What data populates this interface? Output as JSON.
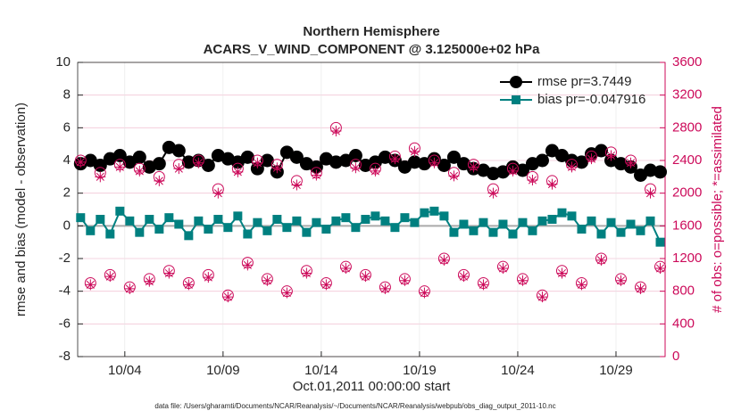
{
  "chart_data": {
    "type": "line",
    "title": "Northern Hemisphere",
    "subtitle": "ACARS_V_WIND_COMPONENT @ 3.125000e+02 hPa",
    "xlabel": "Oct.01,2011 00:00:00 start",
    "ylabel": "rmse and bias (model - observation)",
    "y2label": "# of obs: o=possible; *=assimilated",
    "footnote": "data file: /Users/gharamti/Documents/NCAR/Reanalysis/~/Documents/NCAR/Reanalysis/webpub/obs_diag_output_2011-10.nc",
    "xlim": [
      1.6,
      31.5
    ],
    "xticks": [
      {
        "value": 4,
        "label": "10/04"
      },
      {
        "value": 9,
        "label": "10/09"
      },
      {
        "value": 14,
        "label": "10/14"
      },
      {
        "value": 19,
        "label": "10/19"
      },
      {
        "value": 24,
        "label": "10/24"
      },
      {
        "value": 29,
        "label": "10/29"
      }
    ],
    "ylim": [
      -8,
      10
    ],
    "yticks": [
      -8,
      -6,
      -4,
      -2,
      0,
      2,
      4,
      6,
      8,
      10
    ],
    "y2lim": [
      0,
      3600
    ],
    "y2ticks": [
      0,
      400,
      800,
      1200,
      1600,
      2000,
      2400,
      2800,
      3200,
      3600
    ],
    "grid": true,
    "legend": "upper right",
    "x": [
      1.75,
      2.25,
      2.75,
      3.25,
      3.75,
      4.25,
      4.75,
      5.25,
      5.75,
      6.25,
      6.75,
      7.25,
      7.75,
      8.25,
      8.75,
      9.25,
      9.75,
      10.25,
      10.75,
      11.25,
      11.75,
      12.25,
      12.75,
      13.25,
      13.75,
      14.25,
      14.75,
      15.25,
      15.75,
      16.25,
      16.75,
      17.25,
      17.75,
      18.25,
      18.75,
      19.25,
      19.75,
      20.25,
      20.75,
      21.25,
      21.75,
      22.25,
      22.75,
      23.25,
      23.75,
      24.25,
      24.75,
      25.25,
      25.75,
      26.25,
      26.75,
      27.25,
      27.75,
      28.25,
      28.75,
      29.25,
      29.75,
      30.25,
      30.75,
      31.25
    ],
    "series": [
      {
        "name": "rmse pr=3.7449",
        "color": "#000000",
        "marker": "circle",
        "values": [
          3.8,
          4.0,
          3.7,
          4.1,
          4.3,
          3.9,
          4.2,
          3.6,
          3.8,
          4.8,
          4.6,
          3.9,
          4.0,
          3.7,
          4.3,
          4.1,
          3.9,
          4.2,
          3.5,
          4.0,
          3.3,
          4.5,
          4.2,
          3.8,
          3.6,
          4.1,
          3.9,
          4.0,
          4.3,
          3.7,
          3.9,
          4.2,
          4.0,
          3.6,
          3.9,
          3.8,
          4.1,
          3.7,
          4.2,
          3.8,
          3.5,
          3.4,
          3.2,
          3.3,
          3.6,
          3.4,
          3.8,
          4.0,
          4.6,
          4.3,
          4.0,
          3.9,
          4.4,
          4.6,
          4.0,
          3.8,
          3.6,
          3.1,
          3.4,
          3.3
        ]
      },
      {
        "name": "bias pr=-0.047916",
        "color": "#008080",
        "marker": "square",
        "values": [
          0.5,
          -0.3,
          0.4,
          -0.5,
          0.9,
          0.3,
          -0.4,
          0.4,
          -0.2,
          0.5,
          0.1,
          -0.6,
          0.3,
          -0.2,
          0.4,
          -0.1,
          0.6,
          -0.5,
          0.2,
          -0.3,
          0.4,
          -0.1,
          0.3,
          -0.4,
          0.2,
          -0.2,
          0.3,
          0.5,
          -0.1,
          0.4,
          0.6,
          0.3,
          -0.1,
          0.5,
          0.2,
          0.8,
          0.9,
          0.6,
          -0.4,
          0.1,
          -0.3,
          0.2,
          -0.4,
          0.1,
          -0.5,
          0.2,
          -0.3,
          0.3,
          0.4,
          0.8,
          0.6,
          -0.2,
          0.3,
          -0.5,
          0.2,
          -0.4,
          0.1,
          -0.3,
          0.3,
          -1.0
        ]
      },
      {
        "color": "#cc0a5a",
        "marker": "open-circle",
        "axis": "y2",
        "values": [
          2400,
          900,
          2250,
          1000,
          2350,
          850,
          2300,
          950,
          2200,
          1050,
          2350,
          900,
          2400,
          1000,
          2050,
          750,
          2300,
          1150,
          2400,
          950,
          2350,
          800,
          2150,
          1050,
          2250,
          900,
          2800,
          1100,
          2350,
          1000,
          2300,
          850,
          2450,
          950,
          2550,
          800,
          2400,
          1200,
          2250,
          1000,
          2350,
          900,
          2050,
          1100,
          2300,
          950,
          2200,
          750,
          2150,
          1050,
          2350,
          900,
          2450,
          1200,
          2500,
          950,
          2400,
          850,
          2050,
          1100
        ]
      },
      {
        "color": "#cc0a5a",
        "marker": "asterisk",
        "axis": "y2",
        "values": [
          2380,
          880,
          2200,
          980,
          2320,
          830,
          2270,
          920,
          2150,
          1020,
          2300,
          880,
          2370,
          970,
          2000,
          730,
          2260,
          1120,
          2370,
          930,
          2310,
          780,
          2100,
          1020,
          2220,
          880,
          2760,
          1080,
          2310,
          980,
          2270,
          830,
          2420,
          930,
          2510,
          780,
          2370,
          1180,
          2210,
          980,
          2320,
          880,
          2000,
          1080,
          2270,
          930,
          2160,
          730,
          2110,
          1020,
          2320,
          880,
          2420,
          1180,
          2460,
          930,
          2370,
          830,
          2000,
          1080
        ]
      }
    ]
  }
}
